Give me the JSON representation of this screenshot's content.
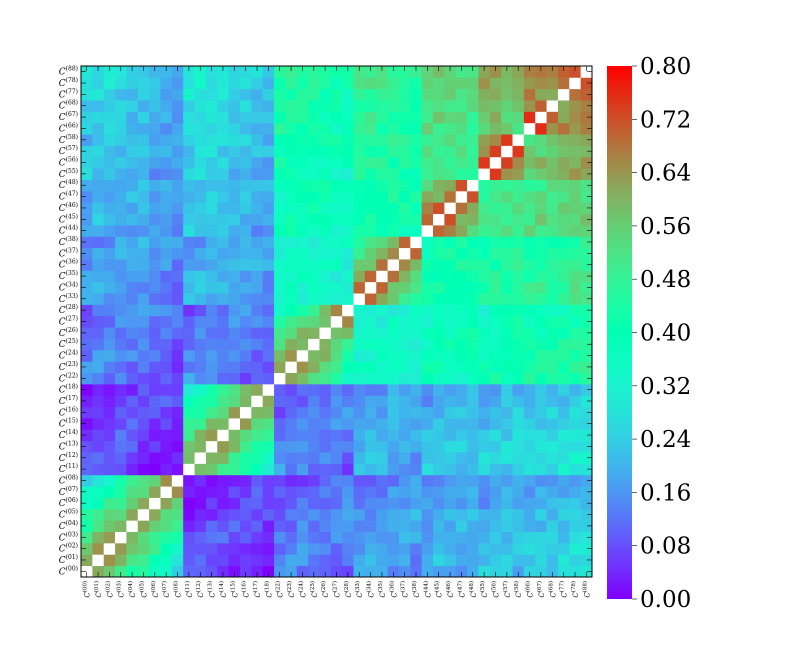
{
  "chart_data": {
    "type": "heatmap",
    "title": "",
    "xlabel": "",
    "ylabel": "",
    "labels": [
      "00",
      "01",
      "02",
      "03",
      "04",
      "05",
      "06",
      "07",
      "08",
      "11",
      "12",
      "13",
      "14",
      "15",
      "16",
      "17",
      "18",
      "22",
      "23",
      "24",
      "25",
      "26",
      "27",
      "28",
      "33",
      "34",
      "35",
      "36",
      "37",
      "38",
      "44",
      "45",
      "46",
      "47",
      "48",
      "55",
      "56",
      "57",
      "58",
      "66",
      "67",
      "68",
      "77",
      "78",
      "88"
    ],
    "label_prefix": "C",
    "label_groups": [
      [
        "00",
        "01",
        "02",
        "03",
        "04",
        "05",
        "06",
        "07",
        "08"
      ],
      [
        "11",
        "12",
        "13",
        "14",
        "15",
        "16",
        "17",
        "18"
      ],
      [
        "22",
        "23",
        "24",
        "25",
        "26",
        "27",
        "28"
      ],
      [
        "33",
        "34",
        "35",
        "36",
        "37",
        "38"
      ],
      [
        "44",
        "45",
        "46",
        "47",
        "48"
      ],
      [
        "55",
        "56",
        "57",
        "58"
      ],
      [
        "66",
        "67",
        "68"
      ],
      [
        "77",
        "78"
      ],
      [
        "88"
      ]
    ],
    "diagonal": "blank",
    "colorbar": {
      "min": 0.0,
      "max": 0.8,
      "ticks": [
        "0.00",
        "0.08",
        "0.16",
        "0.24",
        "0.32",
        "0.40",
        "0.48",
        "0.56",
        "0.64",
        "0.72",
        "0.80"
      ],
      "colormap": "rainbow"
    },
    "block_values": [
      [
        0.62,
        0.1,
        0.16,
        0.2,
        0.22,
        0.24,
        0.26,
        0.28,
        0.3
      ],
      [
        0.1,
        0.62,
        0.16,
        0.22,
        0.24,
        0.26,
        0.28,
        0.3,
        0.32
      ],
      [
        0.16,
        0.16,
        0.62,
        0.36,
        0.4,
        0.42,
        0.44,
        0.46,
        0.48
      ],
      [
        0.2,
        0.22,
        0.36,
        0.66,
        0.44,
        0.46,
        0.48,
        0.5,
        0.52
      ],
      [
        0.22,
        0.24,
        0.4,
        0.44,
        0.68,
        0.52,
        0.54,
        0.56,
        0.58
      ],
      [
        0.24,
        0.26,
        0.42,
        0.46,
        0.52,
        0.72,
        0.58,
        0.62,
        0.64
      ],
      [
        0.26,
        0.28,
        0.44,
        0.48,
        0.54,
        0.58,
        0.72,
        0.66,
        0.68
      ],
      [
        0.28,
        0.3,
        0.46,
        0.5,
        0.56,
        0.62,
        0.66,
        0.72,
        0.74
      ],
      [
        0.3,
        0.32,
        0.48,
        0.52,
        0.58,
        0.64,
        0.68,
        0.74,
        0.76
      ]
    ]
  }
}
